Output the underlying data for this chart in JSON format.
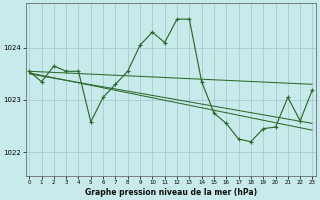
{
  "background_color": "#c8eaea",
  "grid_color_major": "#aacccc",
  "grid_color_minor": "#bbdddd",
  "line_color": "#2d6a2d",
  "title": "Graphe pression niveau de la mer (hPa)",
  "hours": [
    0,
    1,
    2,
    3,
    4,
    5,
    6,
    7,
    8,
    9,
    10,
    11,
    12,
    13,
    14,
    15,
    16,
    17,
    18,
    19,
    20,
    21,
    22,
    23
  ],
  "yticks": [
    1022,
    1023,
    1024
  ],
  "ylim": [
    1021.55,
    1024.85
  ],
  "xlim": [
    -0.3,
    23.3
  ],
  "main_x": [
    0,
    1,
    2,
    3,
    4,
    5,
    6,
    7,
    8,
    9,
    10,
    11,
    12,
    13,
    14,
    15,
    16,
    17,
    18,
    19,
    20,
    21,
    22,
    23
  ],
  "main_y": [
    1023.55,
    1023.35,
    1023.65,
    1023.55,
    1023.55,
    1022.58,
    1023.05,
    1023.3,
    1023.55,
    1024.05,
    1024.3,
    1024.1,
    1024.55,
    1024.55,
    1023.35,
    1022.75,
    1022.55,
    1022.25,
    1022.2,
    1022.45,
    1022.48,
    1023.05,
    1022.6,
    1023.2
  ],
  "trend_lines": [
    {
      "x0": 0,
      "y0": 1023.55,
      "x1": 23,
      "y1": 1023.3
    },
    {
      "x0": 0,
      "y0": 1023.52,
      "x1": 23,
      "y1": 1022.42
    },
    {
      "x0": 0,
      "y0": 1023.5,
      "x1": 23,
      "y1": 1022.55
    }
  ],
  "figsize": [
    3.2,
    2.0
  ],
  "dpi": 100
}
